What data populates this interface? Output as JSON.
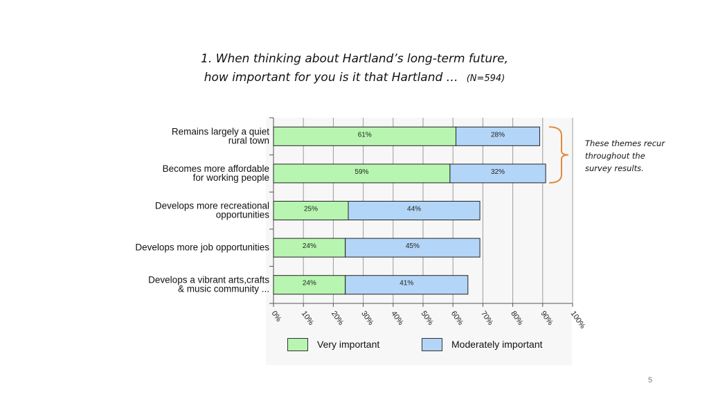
{
  "title_line1": "1. When thinking about Hartland’s long-term future,",
  "title_line2": "how important for you is it that Hartland …",
  "title_n": "(N=594)",
  "annotation": {
    "lines": [
      "These themes recur",
      "throughout the",
      "survey results."
    ],
    "bracket_color": "#e08a3c"
  },
  "page_number": "5",
  "chart_data": {
    "type": "bar",
    "orientation": "horizontal",
    "stacked": true,
    "categories": [
      [
        "Remains largely a quiet",
        "rural town"
      ],
      [
        "Becomes more affordable",
        "for working people"
      ],
      [
        "Develops more recreational",
        "opportunities"
      ],
      [
        "Develops more job opportunities"
      ],
      [
        "Develops a vibrant arts,crafts",
        "& music community ..."
      ]
    ],
    "series": [
      {
        "name": "Very important",
        "values": [
          61,
          59,
          25,
          24,
          24
        ],
        "labels": [
          "61%",
          "59%",
          "25%",
          "24%",
          "24%"
        ],
        "color": "#b7f5b0"
      },
      {
        "name": "Moderately important",
        "values": [
          28,
          32,
          44,
          45,
          41
        ],
        "labels": [
          "28%",
          "32%",
          "44%",
          "45%",
          "41%"
        ],
        "color": "#b3d5f7"
      }
    ],
    "xlim": [
      0,
      100
    ],
    "xticks": [
      "0%",
      "10%",
      "20%",
      "30%",
      "40%",
      "50%",
      "60%",
      "70%",
      "80%",
      "90%",
      "100%"
    ],
    "grid": true,
    "legend_position": "bottom"
  }
}
